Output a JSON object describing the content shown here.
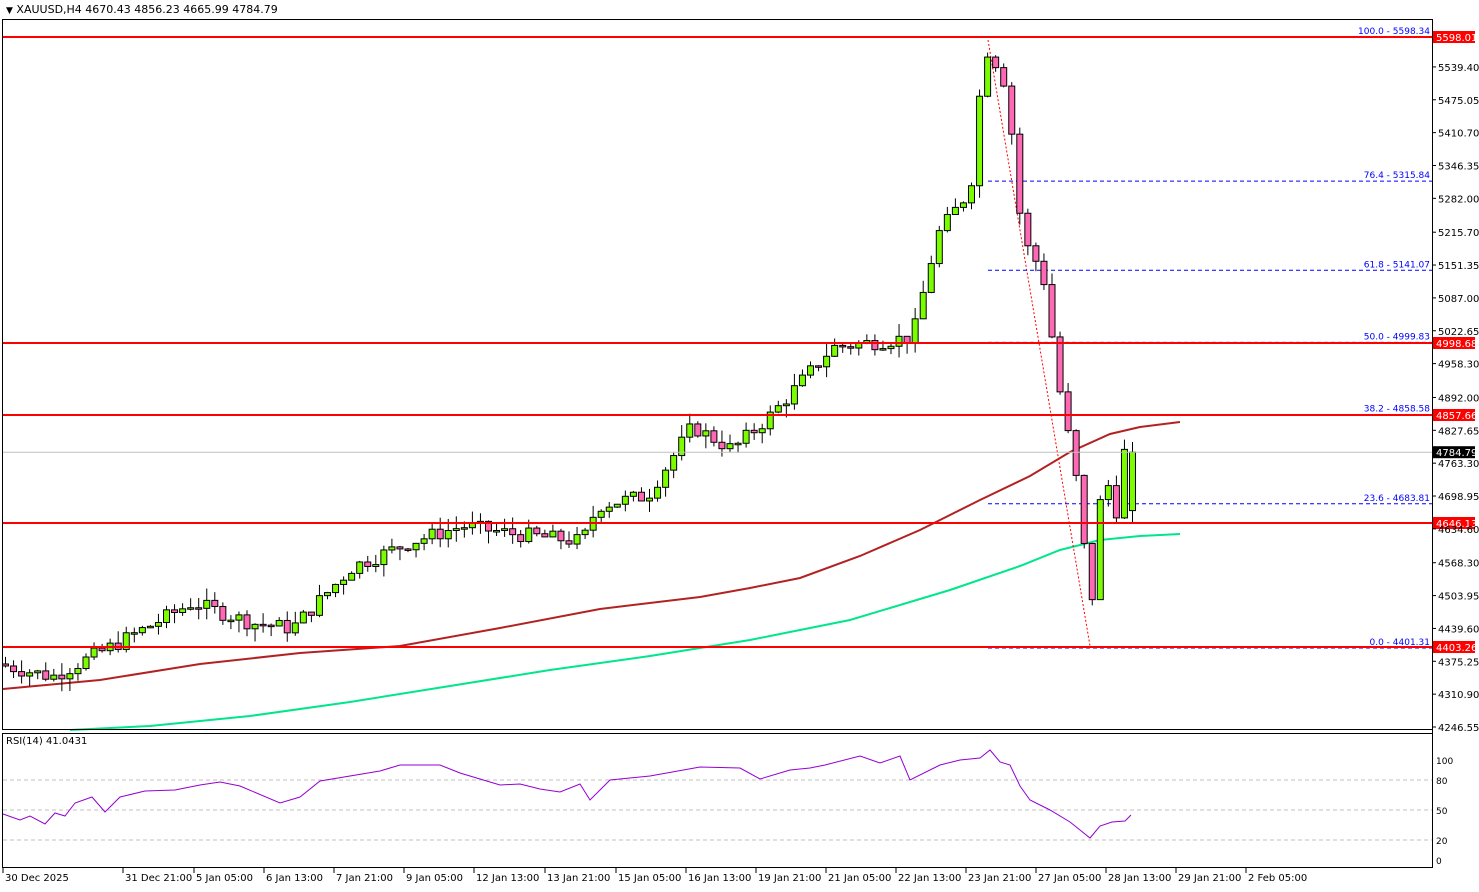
{
  "header": {
    "symbol": "XAUUSD,H4",
    "ohlc": "4670.43 4856.23 4665.99 4784.79",
    "title": "XAUUSD,H4  4670.43 4856.23 4665.99 4784.79"
  },
  "rsi": {
    "label": "RSI(14) 41.0431",
    "levels": [
      "100",
      "80",
      "50",
      "20",
      "0"
    ]
  },
  "price_axis": {
    "ticks": [
      "5539.40",
      "5475.05",
      "5410.70",
      "5346.35",
      "5282.00",
      "5215.70",
      "5151.35",
      "5087.00",
      "5022.65",
      "4958.30",
      "4892.00",
      "4827.65",
      "4763.30",
      "4698.95",
      "4634.60",
      "4568.30",
      "4503.95",
      "4439.60",
      "4375.25",
      "4310.90",
      "4246.55"
    ],
    "current_price": "4784.79"
  },
  "levels": [
    {
      "price": "5598.01",
      "fib": "100.0 - 5598.34"
    },
    {
      "price": "4998.68",
      "fib": "50.0 - 4999.83"
    },
    {
      "price": "4857.66",
      "fib": "38.2 - 4858.58"
    },
    {
      "price": "4646.13",
      "fib": null
    },
    {
      "price": "4403.26",
      "fib": "0.0 - 4401.31"
    }
  ],
  "fib_dashed": [
    {
      "label": "76.4 - 5315.84"
    },
    {
      "label": "61.8 - 5141.07"
    },
    {
      "label": "23.6 - 4683.81"
    }
  ],
  "time_axis": [
    "30 Dec 2025",
    "31 Dec 21:00",
    "5 Jan 05:00",
    "6 Jan 13:00",
    "7 Jan 21:00",
    "9 Jan 05:00",
    "12 Jan 13:00",
    "13 Jan 21:00",
    "15 Jan 05:00",
    "16 Jan 13:00",
    "19 Jan 21:00",
    "21 Jan 05:00",
    "22 Jan 13:00",
    "23 Jan 21:00",
    "27 Jan 05:00",
    "28 Jan 13:00",
    "29 Jan 21:00",
    "2 Feb 05:00"
  ],
  "colors": {
    "bull": "#7cfc00",
    "bear": "#ff69b4",
    "level": "#ff0000",
    "fib": "#0000ff",
    "ma_slow": "#00e68a",
    "ma_fast": "#b22222",
    "rsi": "#9400d3"
  },
  "chart_data": {
    "type": "candlestick",
    "title": "XAUUSD,H4",
    "ohlc_last": {
      "open": 4670.43,
      "high": 4856.23,
      "low": 4665.99,
      "close": 4784.79
    },
    "x_ticks": [
      "30 Dec 2025",
      "31 Dec 21:00",
      "5 Jan 05:00",
      "6 Jan 13:00",
      "7 Jan 21:00",
      "9 Jan 05:00",
      "12 Jan 13:00",
      "13 Jan 21:00",
      "15 Jan 05:00",
      "16 Jan 13:00",
      "19 Jan 21:00",
      "21 Jan 05:00",
      "22 Jan 13:00",
      "23 Jan 21:00",
      "27 Jan 05:00",
      "28 Jan 13:00",
      "29 Jan 21:00",
      "2 Feb 05:00"
    ],
    "ylim": [
      4246.55,
      5598.01
    ],
    "horizontal_levels": [
      5598.01,
      4998.68,
      4857.66,
      4646.13,
      4403.26
    ],
    "fibonacci": [
      {
        "level": 100.0,
        "price": 5598.34
      },
      {
        "level": 76.4,
        "price": 5315.84
      },
      {
        "level": 61.8,
        "price": 5141.07
      },
      {
        "level": 50.0,
        "price": 4999.83
      },
      {
        "level": 38.2,
        "price": 4858.58
      },
      {
        "level": 23.6,
        "price": 4683.81
      },
      {
        "level": 0.0,
        "price": 4401.31
      }
    ],
    "moving_averages": [
      {
        "name": "MA fast (brown)",
        "start": 4330,
        "end": 4842
      },
      {
        "name": "MA slow (green)",
        "start": 4235,
        "end": 4628
      }
    ],
    "rsi": {
      "period": 14,
      "value": 41.0431,
      "levels": [
        20,
        50,
        80
      ],
      "ylim": [
        0,
        100
      ]
    },
    "path_summary": {
      "start": 4370,
      "peak": 5598,
      "trough": 4401,
      "last": 4784.79
    }
  }
}
